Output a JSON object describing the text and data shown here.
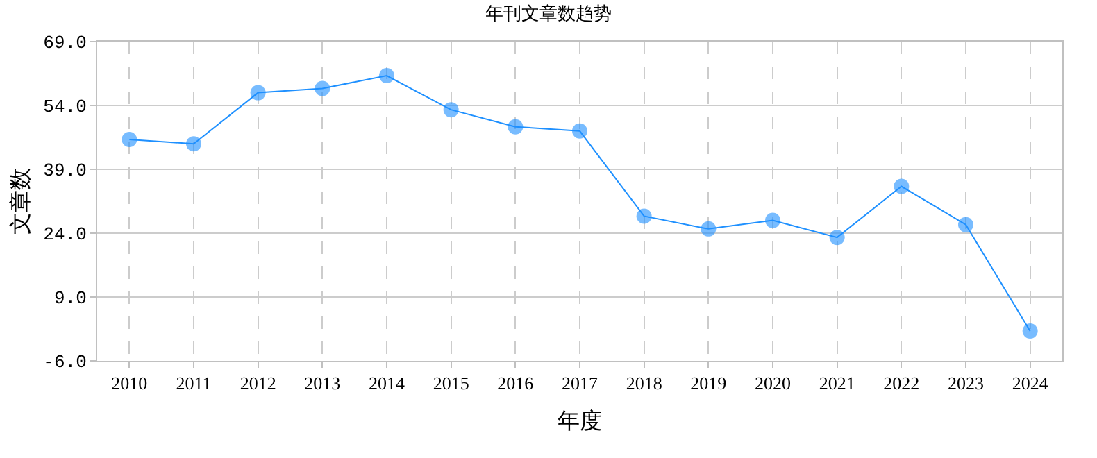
{
  "chart_data": {
    "type": "line",
    "title": "年刊文章数趋势",
    "xlabel": "年度",
    "ylabel": "文章数",
    "categories": [
      "2010",
      "2011",
      "2012",
      "2013",
      "2014",
      "2015",
      "2016",
      "2017",
      "2018",
      "2019",
      "2020",
      "2021",
      "2022",
      "2023",
      "2024"
    ],
    "series": [
      {
        "color": "#1e90ff",
        "values": [
          46,
          45,
          57,
          58,
          61,
          53,
          49,
          48,
          28,
          25,
          27,
          23,
          35,
          26,
          1
        ]
      }
    ],
    "ylim": [
      -6,
      69
    ],
    "yticks": [
      {
        "value": -6,
        "label": "-6.0"
      },
      {
        "value": 9,
        "label": "9.0"
      },
      {
        "value": 24,
        "label": "24.0"
      },
      {
        "value": 39,
        "label": "39.0"
      },
      {
        "value": 54,
        "label": "54.0"
      },
      {
        "value": 69,
        "label": "69.0"
      }
    ],
    "grid": true,
    "marker": "circle",
    "line_style": "solid"
  }
}
